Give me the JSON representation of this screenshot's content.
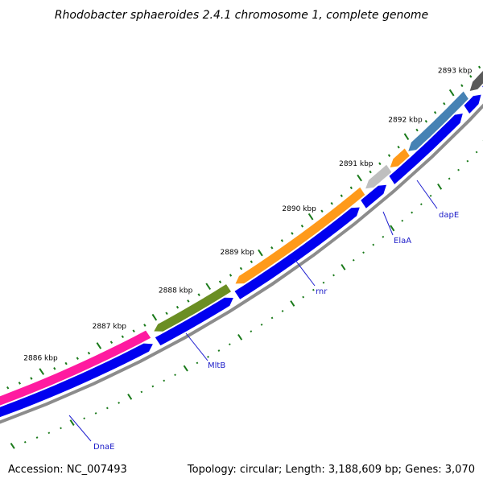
{
  "title": "Rhodobacter sphaeroides 2.4.1 chromosome 1, complete genome",
  "footer": {
    "accession": "Accession: NC_007493",
    "summary": "Topology: circular; Length: 3,188,609 bp; Genes: 3,070"
  },
  "colors": {
    "backbone": "#8c8c8c",
    "forward_feature": "#0000f0",
    "tick": "#1a7a1a",
    "label_line": "#2020d0",
    "label_text": "#1a1ac8",
    "dnaE": "#ff1aa0",
    "mltB": "#6b8e23",
    "rnr": "#ff9a1a",
    "elaA": "#ff9a1a",
    "dapE": "#4682b4",
    "grey_feature": "#bfbfbf",
    "dark_feature": "#5a5a5a"
  },
  "ticks": [
    {
      "label": "2886 kbp"
    },
    {
      "label": "2887 kbp"
    },
    {
      "label": "2888 kbp"
    },
    {
      "label": "2889 kbp"
    },
    {
      "label": "2890 kbp"
    },
    {
      "label": "2891 kbp"
    },
    {
      "label": "2892 kbp"
    },
    {
      "label": "2893 kbp"
    }
  ],
  "genes": [
    {
      "name": "DnaE"
    },
    {
      "name": "MltB"
    },
    {
      "name": "rnr"
    },
    {
      "name": "ElaA"
    },
    {
      "name": "dapE"
    }
  ]
}
